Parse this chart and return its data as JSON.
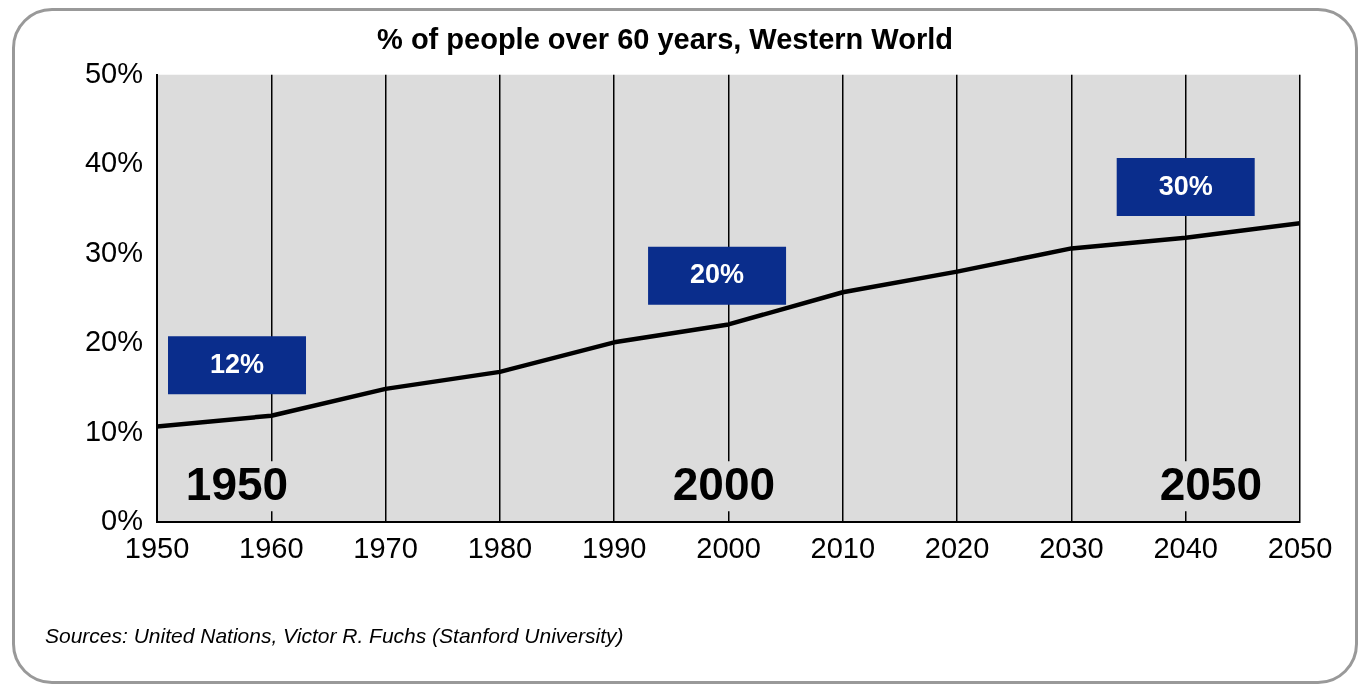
{
  "chart_data": {
    "type": "line",
    "title": "% of people over 60 years, Western World",
    "x": [
      1950,
      1960,
      1970,
      1980,
      1990,
      2000,
      2010,
      2020,
      2030,
      2040,
      2050
    ],
    "series": [
      {
        "color": "#000000",
        "values": [
          10.7,
          11.9,
          14.9,
          16.8,
          20.1,
          22.1,
          25.7,
          28,
          30.6,
          31.8,
          33.4
        ]
      }
    ],
    "xlim": [
      1950,
      2050
    ],
    "xticks": [
      1950,
      1960,
      1970,
      1980,
      1990,
      2000,
      2010,
      2020,
      2030,
      2040,
      2050
    ],
    "ylim": [
      0,
      50
    ],
    "yticks": [
      {
        "value": 0,
        "label": "0%"
      },
      {
        "value": 10,
        "label": "10%"
      },
      {
        "value": 20,
        "label": "20%"
      },
      {
        "value": 30,
        "label": "30%"
      },
      {
        "value": 40,
        "label": "40%"
      },
      {
        "value": 50,
        "label": "50%"
      }
    ],
    "grid": "x",
    "legend": false,
    "marker": "none",
    "line_style": "solid",
    "annotations": [
      "12%",
      "20%",
      "30%",
      "1950",
      "2000",
      "2050",
      "Sources: United Nations, Victor R. Fuchs (Stanford University)"
    ]
  }
}
